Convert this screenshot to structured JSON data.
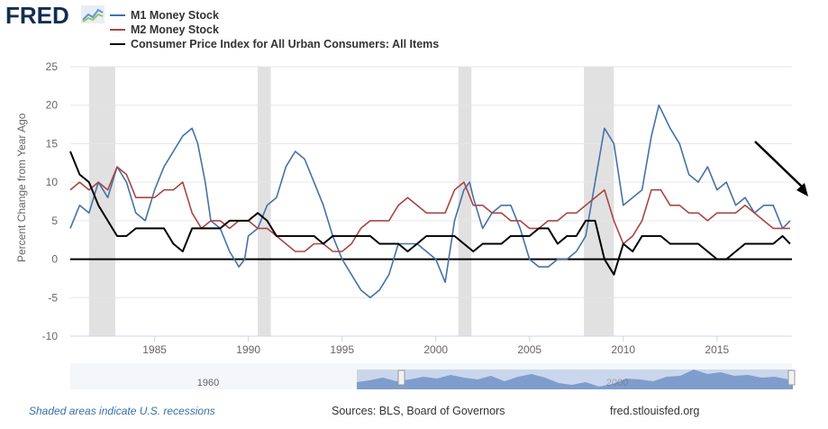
{
  "brand": {
    "name": "FRED"
  },
  "legend": [
    {
      "label": "M1 Money Stock",
      "color": "#4572a7"
    },
    {
      "label": "M2 Money Stock",
      "color": "#aa4643"
    },
    {
      "label": "Consumer Price Index for All Urban Consumers: All Items",
      "color": "#000000"
    }
  ],
  "footer": {
    "note": "Shaded areas indicate U.S. recessions",
    "sources": "Sources: BLS, Board of Governors",
    "site": "fred.stlouisfed.org"
  },
  "navigator": {
    "labels": [
      "1960",
      "2000"
    ]
  },
  "chart_data": {
    "type": "line",
    "title": "",
    "xlabel": "",
    "ylabel": "Percent Change from Year Ago",
    "xlim": [
      1980.5,
      2019.0
    ],
    "ylim": [
      -10,
      25
    ],
    "yticks": [
      -10,
      -5,
      0,
      5,
      10,
      15,
      20,
      25
    ],
    "xticks": [
      1985,
      1990,
      1995,
      2000,
      2005,
      2010,
      2015
    ],
    "recessions": [
      [
        1981.5,
        1982.9
      ],
      [
        1990.5,
        1991.2
      ],
      [
        2001.2,
        2001.9
      ],
      [
        2007.9,
        2009.5
      ]
    ],
    "series": [
      {
        "name": "M1 Money Stock",
        "color": "#4572a7",
        "x": [
          1980.5,
          1981,
          1981.5,
          1982,
          1982.5,
          1983,
          1983.5,
          1984,
          1984.5,
          1985,
          1985.5,
          1986,
          1986.5,
          1987,
          1987.3,
          1987.7,
          1988,
          1988.5,
          1989,
          1989.5,
          1989.8,
          1990,
          1990.5,
          1991,
          1991.5,
          1992,
          1992.5,
          1993,
          1993.5,
          1994,
          1994.5,
          1995,
          1995.5,
          1996,
          1996.5,
          1997,
          1997.5,
          1998,
          1998.5,
          1999,
          1999.5,
          2000,
          2000.5,
          2001,
          2001.5,
          2001.8,
          2002,
          2002.5,
          2003,
          2003.5,
          2004,
          2004.5,
          2005,
          2005.5,
          2006,
          2006.5,
          2007,
          2007.5,
          2008,
          2008.5,
          2009,
          2009.5,
          2010,
          2010.5,
          2011,
          2011.5,
          2011.9,
          2012.5,
          2013,
          2013.5,
          2014,
          2014.5,
          2015,
          2015.5,
          2016,
          2016.5,
          2017,
          2017.5,
          2018,
          2018.5,
          2018.9
        ],
        "values": [
          4,
          7,
          6,
          10,
          8,
          12,
          10,
          6,
          5,
          9,
          12,
          14,
          16,
          17,
          15,
          10,
          5,
          4,
          1,
          -1,
          0,
          3,
          4,
          7,
          8,
          12,
          14,
          13,
          10,
          7,
          3,
          0,
          -2,
          -4,
          -5,
          -4,
          -2,
          2,
          2,
          2,
          1,
          0,
          -3,
          5,
          9,
          10,
          8,
          4,
          6,
          7,
          7,
          4,
          0,
          -1,
          -1,
          0,
          0,
          1,
          3,
          10,
          17,
          15,
          7,
          8,
          9,
          16,
          20,
          17,
          15,
          11,
          10,
          12,
          9,
          10,
          7,
          8,
          6,
          7,
          7,
          4,
          5
        ]
      },
      {
        "name": "M2 Money Stock",
        "color": "#aa4643",
        "x": [
          1980.5,
          1981,
          1981.5,
          1982,
          1982.5,
          1983,
          1983.5,
          1984,
          1984.5,
          1985,
          1985.5,
          1986,
          1986.5,
          1987,
          1987.5,
          1988,
          1988.5,
          1989,
          1989.5,
          1990,
          1990.5,
          1991,
          1991.5,
          1992,
          1992.5,
          1993,
          1993.5,
          1994,
          1994.5,
          1995,
          1995.5,
          1996,
          1996.5,
          1997,
          1997.5,
          1998,
          1998.5,
          1999,
          1999.5,
          2000,
          2000.5,
          2001,
          2001.5,
          2002,
          2002.5,
          2003,
          2003.5,
          2004,
          2004.5,
          2005,
          2005.5,
          2006,
          2006.5,
          2007,
          2007.5,
          2008,
          2008.5,
          2009,
          2009.5,
          2010,
          2010.5,
          2011,
          2011.5,
          2012,
          2012.5,
          2013,
          2013.5,
          2014,
          2014.5,
          2015,
          2015.5,
          2016,
          2016.5,
          2017,
          2017.5,
          2018,
          2018.5,
          2018.9
        ],
        "values": [
          9,
          10,
          9,
          10,
          9,
          12,
          11,
          8,
          8,
          8,
          9,
          9,
          10,
          6,
          4,
          5,
          5,
          4,
          5,
          5,
          4,
          4,
          3,
          2,
          1,
          1,
          2,
          2,
          1,
          1,
          2,
          4,
          5,
          5,
          5,
          7,
          8,
          7,
          6,
          6,
          6,
          9,
          10,
          7,
          7,
          6,
          6,
          5,
          5,
          4,
          4,
          5,
          5,
          6,
          6,
          7,
          8,
          9,
          5,
          2,
          3,
          5,
          9,
          9,
          7,
          7,
          6,
          6,
          5,
          6,
          6,
          6,
          7,
          6,
          5,
          4,
          4,
          4
        ]
      },
      {
        "name": "Consumer Price Index for All Urban Consumers: All Items",
        "color": "#000000",
        "x": [
          1980.5,
          1981,
          1981.5,
          1982,
          1982.5,
          1983,
          1983.5,
          1984,
          1984.5,
          1985,
          1985.5,
          1986,
          1986.5,
          1987,
          1987.5,
          1988,
          1988.5,
          1989,
          1989.5,
          1990,
          1990.5,
          1991,
          1991.5,
          1992,
          1992.5,
          1993,
          1993.5,
          1994,
          1994.5,
          1995,
          1995.5,
          1996,
          1996.5,
          1997,
          1997.5,
          1998,
          1998.5,
          1999,
          1999.5,
          2000,
          2000.5,
          2001,
          2001.5,
          2002,
          2002.5,
          2003,
          2003.5,
          2004,
          2004.5,
          2005,
          2005.5,
          2006,
          2006.5,
          2007,
          2007.5,
          2008,
          2008.5,
          2009,
          2009.5,
          2010,
          2010.5,
          2011,
          2011.5,
          2012,
          2012.5,
          2013,
          2013.5,
          2014,
          2014.5,
          2015,
          2015.5,
          2016,
          2016.5,
          2017,
          2017.5,
          2018,
          2018.5,
          2018.9
        ],
        "values": [
          14,
          11,
          10,
          7,
          5,
          3,
          3,
          4,
          4,
          4,
          4,
          2,
          1,
          4,
          4,
          4,
          4,
          5,
          5,
          5,
          6,
          5,
          3,
          3,
          3,
          3,
          3,
          2,
          3,
          3,
          3,
          3,
          3,
          2,
          2,
          2,
          1,
          2,
          3,
          3,
          3,
          3,
          2,
          1,
          2,
          2,
          2,
          3,
          3,
          3,
          4,
          4,
          2,
          3,
          3,
          5,
          5,
          0,
          -2,
          2,
          1,
          3,
          3,
          3,
          2,
          2,
          2,
          2,
          1,
          0,
          0,
          1,
          2,
          2,
          2,
          2,
          3,
          2
        ]
      }
    ]
  }
}
